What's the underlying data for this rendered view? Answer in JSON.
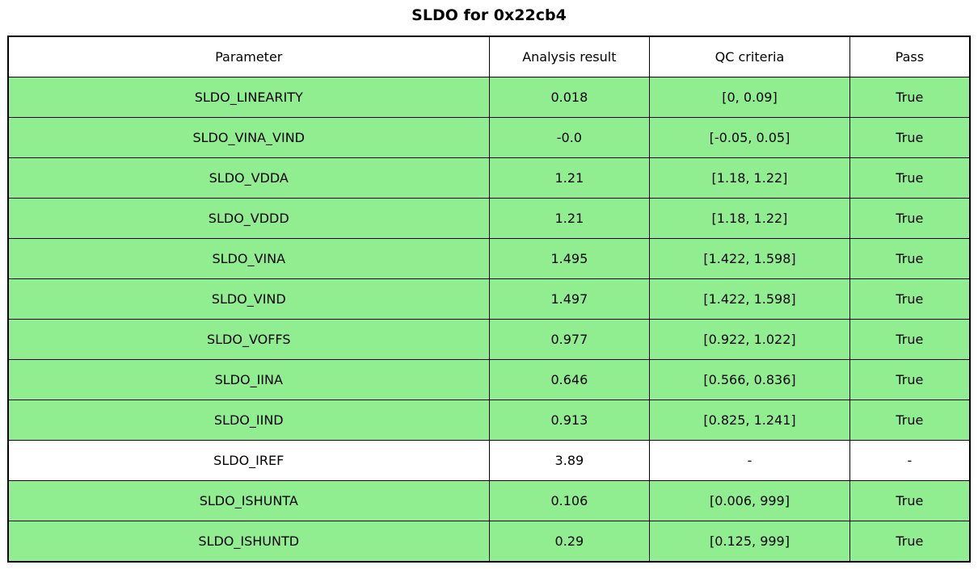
{
  "title": "SLDO for 0x22cb4",
  "colors": {
    "pass_row_green": "#90ee90",
    "neutral_row_white": "#ffffff",
    "border_black": "#000000",
    "text_black": "#000000"
  },
  "chart_data": {
    "type": "table",
    "title": "SLDO for 0x22cb4",
    "columns": [
      "Parameter",
      "Analysis result",
      "QC criteria",
      "Pass"
    ],
    "rows": [
      [
        "SLDO_LINEARITY",
        "0.018",
        "[0, 0.09]",
        "True"
      ],
      [
        "SLDO_VINA_VIND",
        "-0.0",
        "[-0.05, 0.05]",
        "True"
      ],
      [
        "SLDO_VDDA",
        "1.21",
        "[1.18, 1.22]",
        "True"
      ],
      [
        "SLDO_VDDD",
        "1.21",
        "[1.18, 1.22]",
        "True"
      ],
      [
        "SLDO_VINA",
        "1.495",
        "[1.422, 1.598]",
        "True"
      ],
      [
        "SLDO_VIND",
        "1.497",
        "[1.422, 1.598]",
        "True"
      ],
      [
        "SLDO_VOFFS",
        "0.977",
        "[0.922, 1.022]",
        "True"
      ],
      [
        "SLDO_IINA",
        "0.646",
        "[0.566, 0.836]",
        "True"
      ],
      [
        "SLDO_IIND",
        "0.913",
        "[0.825, 1.241]",
        "True"
      ],
      [
        "SLDO_IREF",
        "3.89",
        "-",
        "-"
      ],
      [
        "SLDO_ISHUNTA",
        "0.106",
        "[0.006, 999]",
        "True"
      ],
      [
        "SLDO_ISHUNTD",
        "0.29",
        "[0.125, 999]",
        "True"
      ]
    ],
    "row_passed": [
      true,
      true,
      true,
      true,
      true,
      true,
      true,
      true,
      true,
      null,
      true,
      true
    ],
    "layout": {
      "header_background": "#ffffff",
      "pass_row_background": "#90ee90",
      "neutral_row_background": "#ffffff",
      "grid": true
    }
  }
}
